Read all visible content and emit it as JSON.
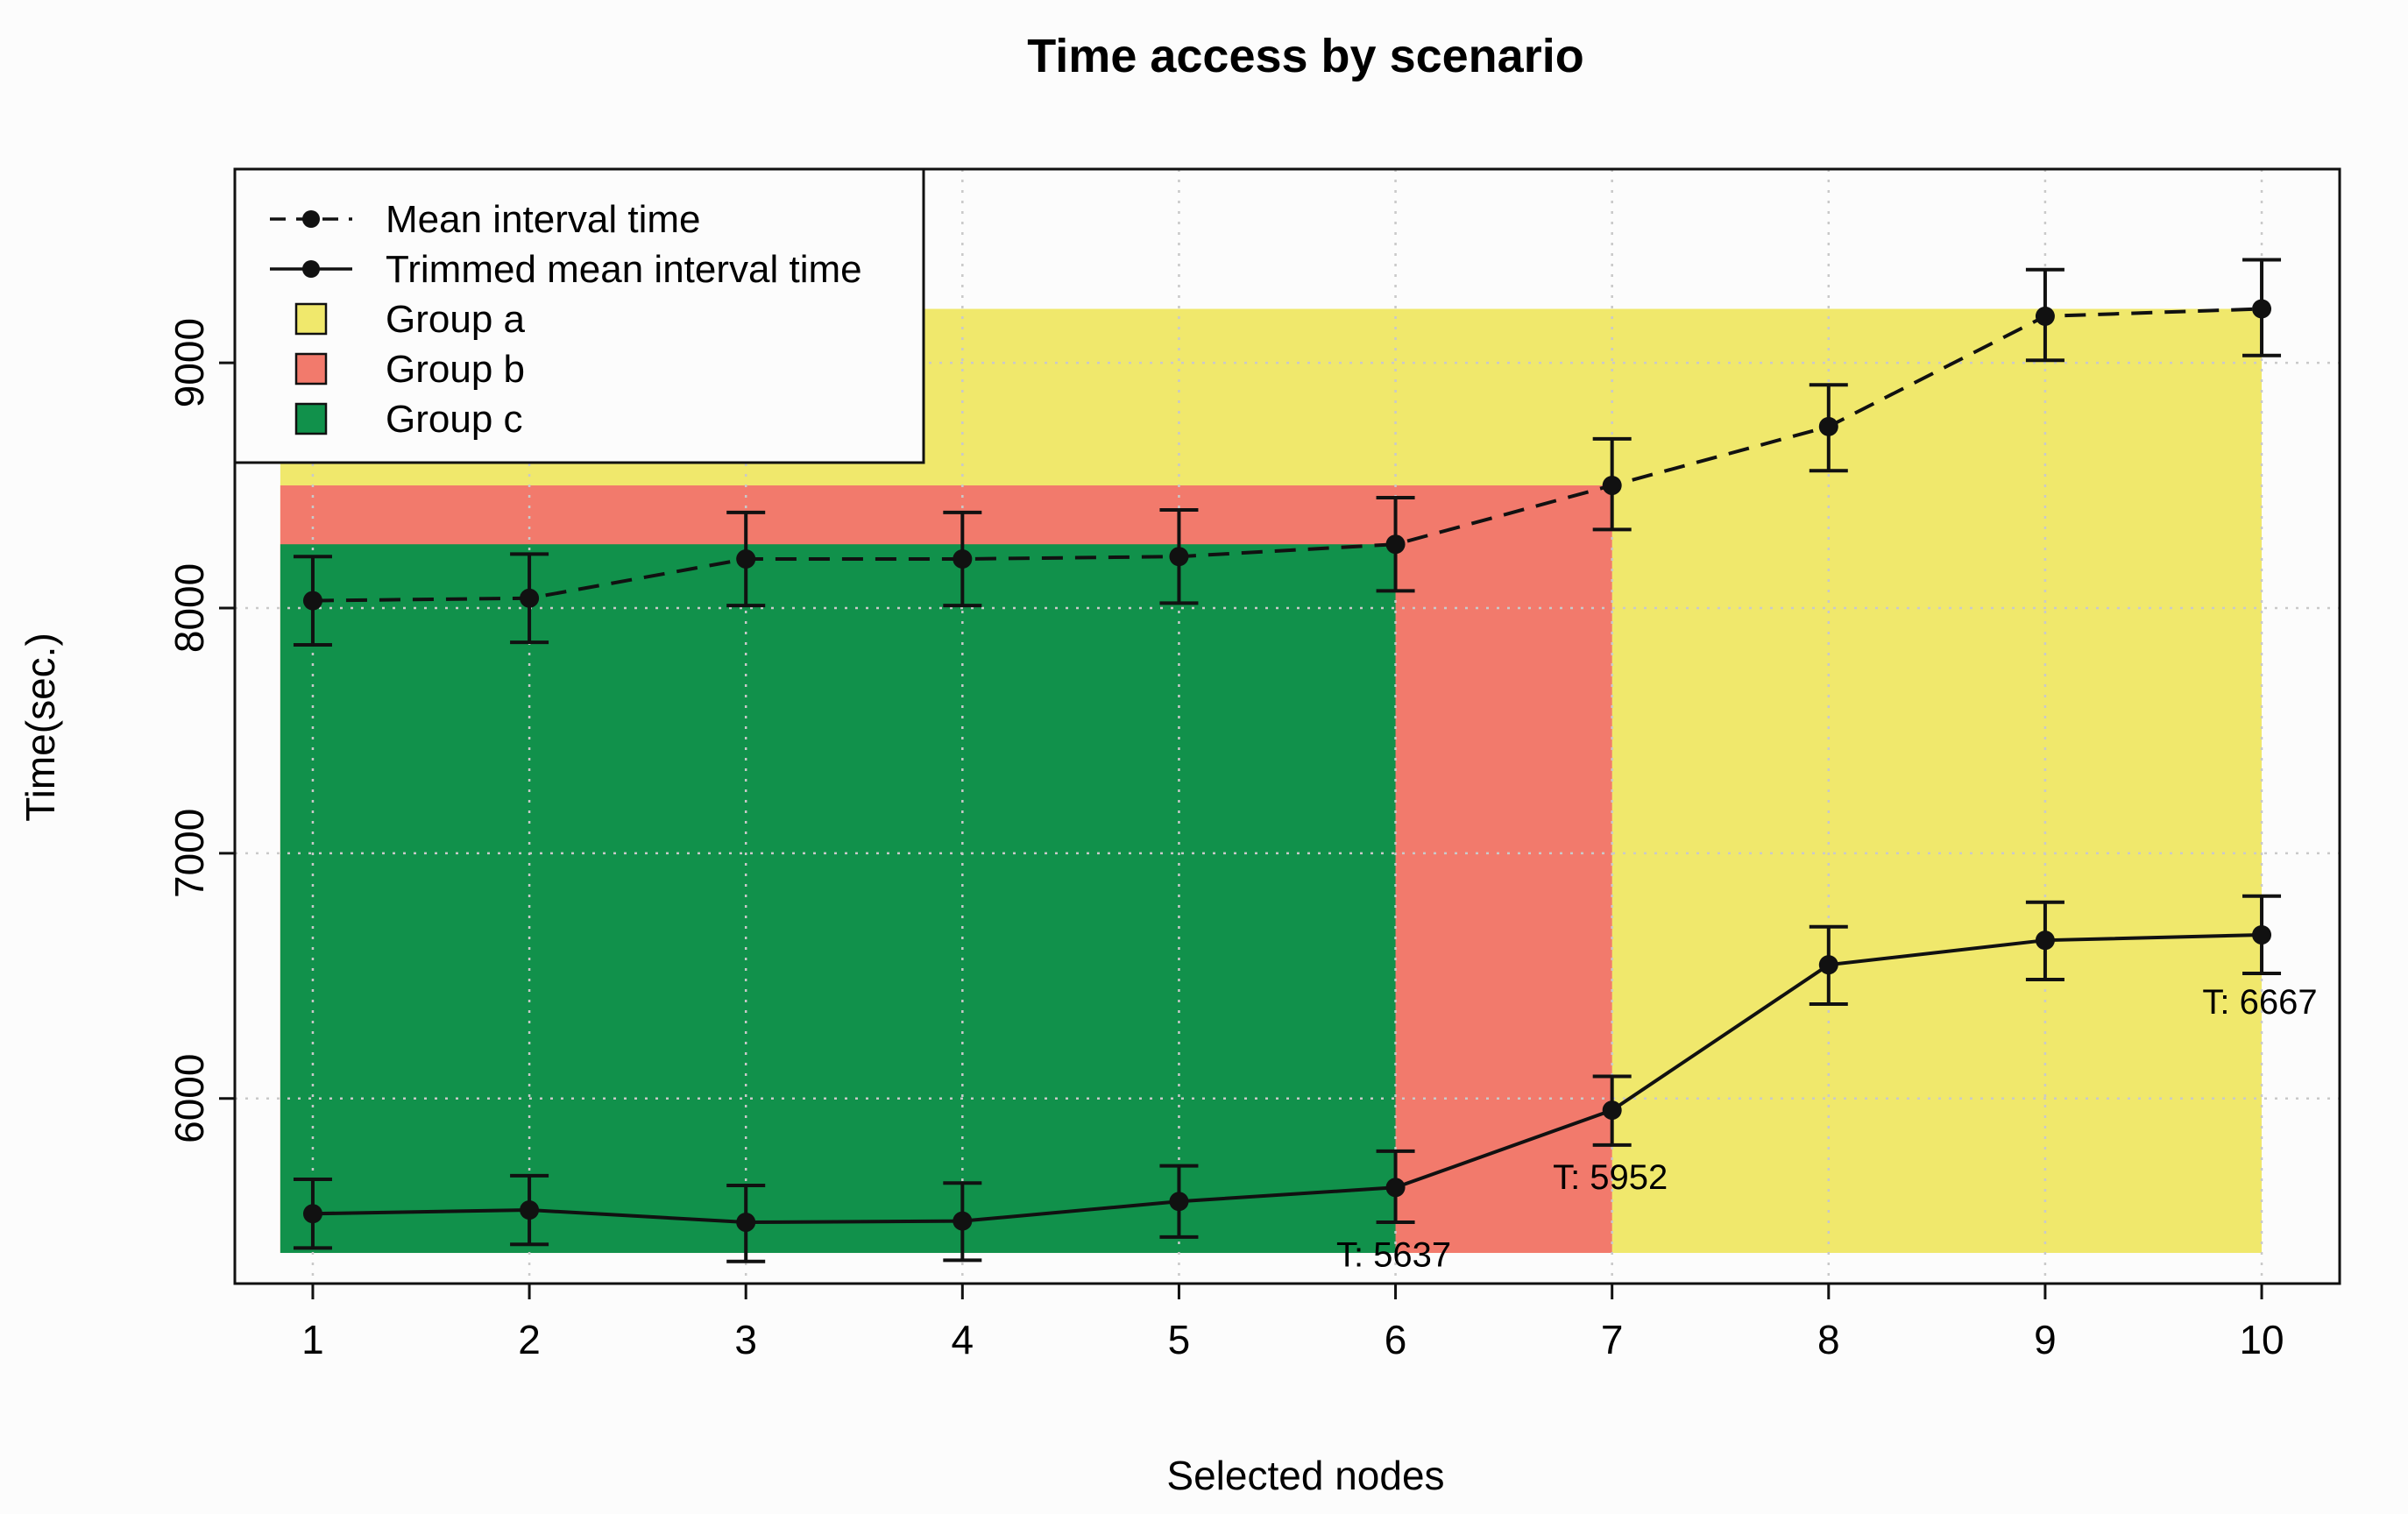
{
  "chart_data": {
    "type": "line",
    "title": "Time access by scenario",
    "xlabel": "Selected nodes",
    "ylabel": "Time(sec.)",
    "x": [
      1,
      2,
      3,
      4,
      5,
      6,
      7,
      8,
      9,
      10
    ],
    "xlim": [
      0.64,
      10.36
    ],
    "ylim": [
      5245,
      9790
    ],
    "y_ticks": [
      6000,
      7000,
      8000,
      9000
    ],
    "grid": true,
    "legend_position": "top-left",
    "series": [
      {
        "name": "Mean interval time",
        "style": "dashed",
        "values": [
          8030,
          8040,
          8200,
          8200,
          8210,
          8260,
          8500,
          8740,
          9190,
          9220
        ],
        "err_low": [
          7850,
          7860,
          8010,
          8010,
          8020,
          8070,
          8320,
          8560,
          9010,
          9030
        ],
        "err_high": [
          8210,
          8220,
          8390,
          8390,
          8400,
          8450,
          8690,
          8910,
          9380,
          9420
        ]
      },
      {
        "name": "Trimmed mean interval time",
        "style": "solid",
        "values": [
          5530,
          5545,
          5495,
          5500,
          5580,
          5637,
          5952,
          6545,
          6645,
          6667
        ],
        "err_low": [
          5390,
          5405,
          5335,
          5340,
          5435,
          5495,
          5810,
          6385,
          6485,
          6510
        ],
        "err_high": [
          5670,
          5685,
          5645,
          5655,
          5725,
          5785,
          6090,
          6700,
          6800,
          6825
        ]
      }
    ],
    "groups": [
      {
        "name": "Group a",
        "color": "#f0e86c",
        "x_start": 0.85,
        "x_end": 10,
        "y_bottom": 5370,
        "y_top": 9220
      },
      {
        "name": "Group b",
        "color": "#f27a6c",
        "x_start": 0.85,
        "x_end": 7,
        "y_bottom": 5370,
        "y_top": 8500
      },
      {
        "name": "Group c",
        "color": "#11914b",
        "x_start": 0.85,
        "x_end": 6,
        "y_bottom": 5370,
        "y_top": 8260
      }
    ],
    "annotations": [
      {
        "text": "T: 5637",
        "x": 6,
        "y": 5637
      },
      {
        "text": "T: 5952",
        "x": 7,
        "y": 5952
      },
      {
        "text": "T: 6667",
        "x": 10,
        "y": 6667
      }
    ]
  }
}
